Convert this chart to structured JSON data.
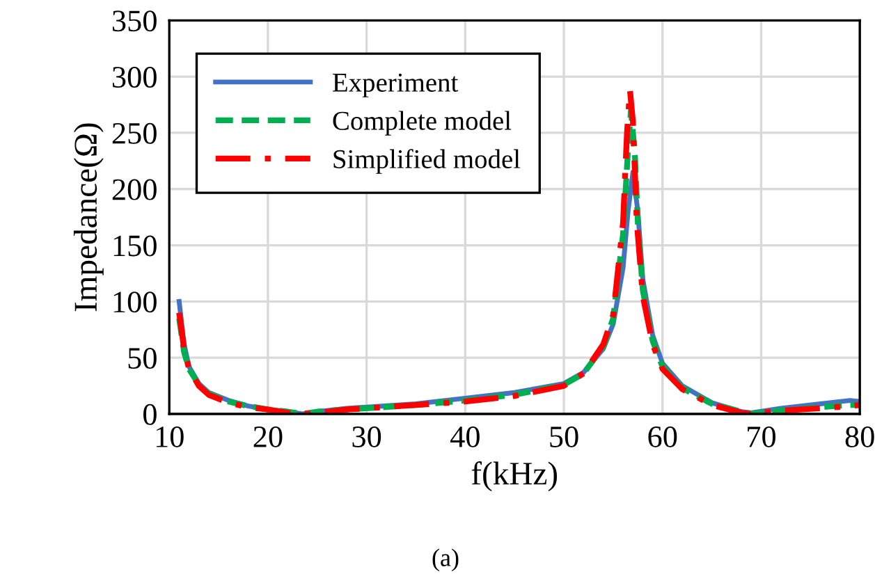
{
  "chart_data": {
    "type": "line",
    "xlabel": "f(kHz)",
    "ylabel": "Impedance(Ω)",
    "annotations": [
      "(a)"
    ],
    "xlim": [
      10,
      80
    ],
    "xticks": [
      10,
      20,
      30,
      40,
      50,
      60,
      70,
      80
    ],
    "ylim": [
      0,
      350
    ],
    "yticks": [
      0,
      50,
      100,
      150,
      200,
      250,
      300,
      350
    ],
    "grid": true,
    "legend": "top left",
    "series": [
      {
        "name": "Experiment",
        "color": "#4472c4",
        "line_style": "solid",
        "x": [
          11,
          11.5,
          12,
          13,
          14,
          16,
          18,
          20,
          22,
          23.5,
          25,
          28,
          30,
          35,
          40,
          45,
          50,
          52,
          54,
          55,
          56,
          56.5,
          57,
          57.5,
          58,
          59,
          60,
          62,
          65,
          68,
          69,
          72,
          76,
          79,
          80
        ],
        "values": [
          100,
          62,
          42,
          27,
          19,
          12,
          7,
          4,
          2,
          0,
          2,
          5,
          6,
          9,
          14,
          19,
          27,
          37,
          58,
          80,
          130,
          180,
          215,
          180,
          120,
          70,
          45,
          25,
          10,
          2,
          1,
          5,
          9,
          12,
          11
        ]
      },
      {
        "name": "Complete model",
        "color": "#00b050",
        "line_style": "dashed",
        "x": [
          11,
          11.5,
          12,
          13,
          14,
          16,
          18,
          20,
          22,
          23.5,
          25,
          28,
          30,
          35,
          40,
          45,
          50,
          52,
          54,
          55,
          56,
          56.5,
          56.8,
          57.2,
          57.5,
          58,
          59,
          60,
          62,
          65,
          68,
          69,
          72,
          76,
          79,
          80
        ],
        "values": [
          85,
          55,
          40,
          26,
          18,
          11,
          7,
          4,
          2,
          0,
          2,
          4,
          5,
          8,
          12,
          17,
          26,
          36,
          60,
          85,
          160,
          235,
          270,
          230,
          170,
          110,
          65,
          42,
          23,
          9,
          2,
          0,
          3,
          6,
          8,
          8
        ]
      },
      {
        "name": "Simplified model",
        "color": "#ff0000",
        "line_style": "dashdot",
        "x": [
          11,
          11.5,
          12,
          13,
          14,
          16,
          18,
          20,
          22,
          23.5,
          25,
          28,
          30,
          35,
          40,
          45,
          50,
          52,
          54,
          55,
          56,
          56.4,
          56.7,
          57,
          57.4,
          58,
          59,
          60,
          62,
          65,
          68,
          69,
          72,
          76,
          79,
          80
        ],
        "values": [
          90,
          58,
          40,
          25,
          17,
          10,
          6,
          4,
          1,
          0,
          1,
          4,
          5,
          8,
          11,
          16,
          25,
          36,
          62,
          88,
          170,
          250,
          288,
          260,
          170,
          105,
          62,
          40,
          22,
          8,
          1,
          0,
          3,
          5,
          7,
          8
        ]
      }
    ]
  }
}
